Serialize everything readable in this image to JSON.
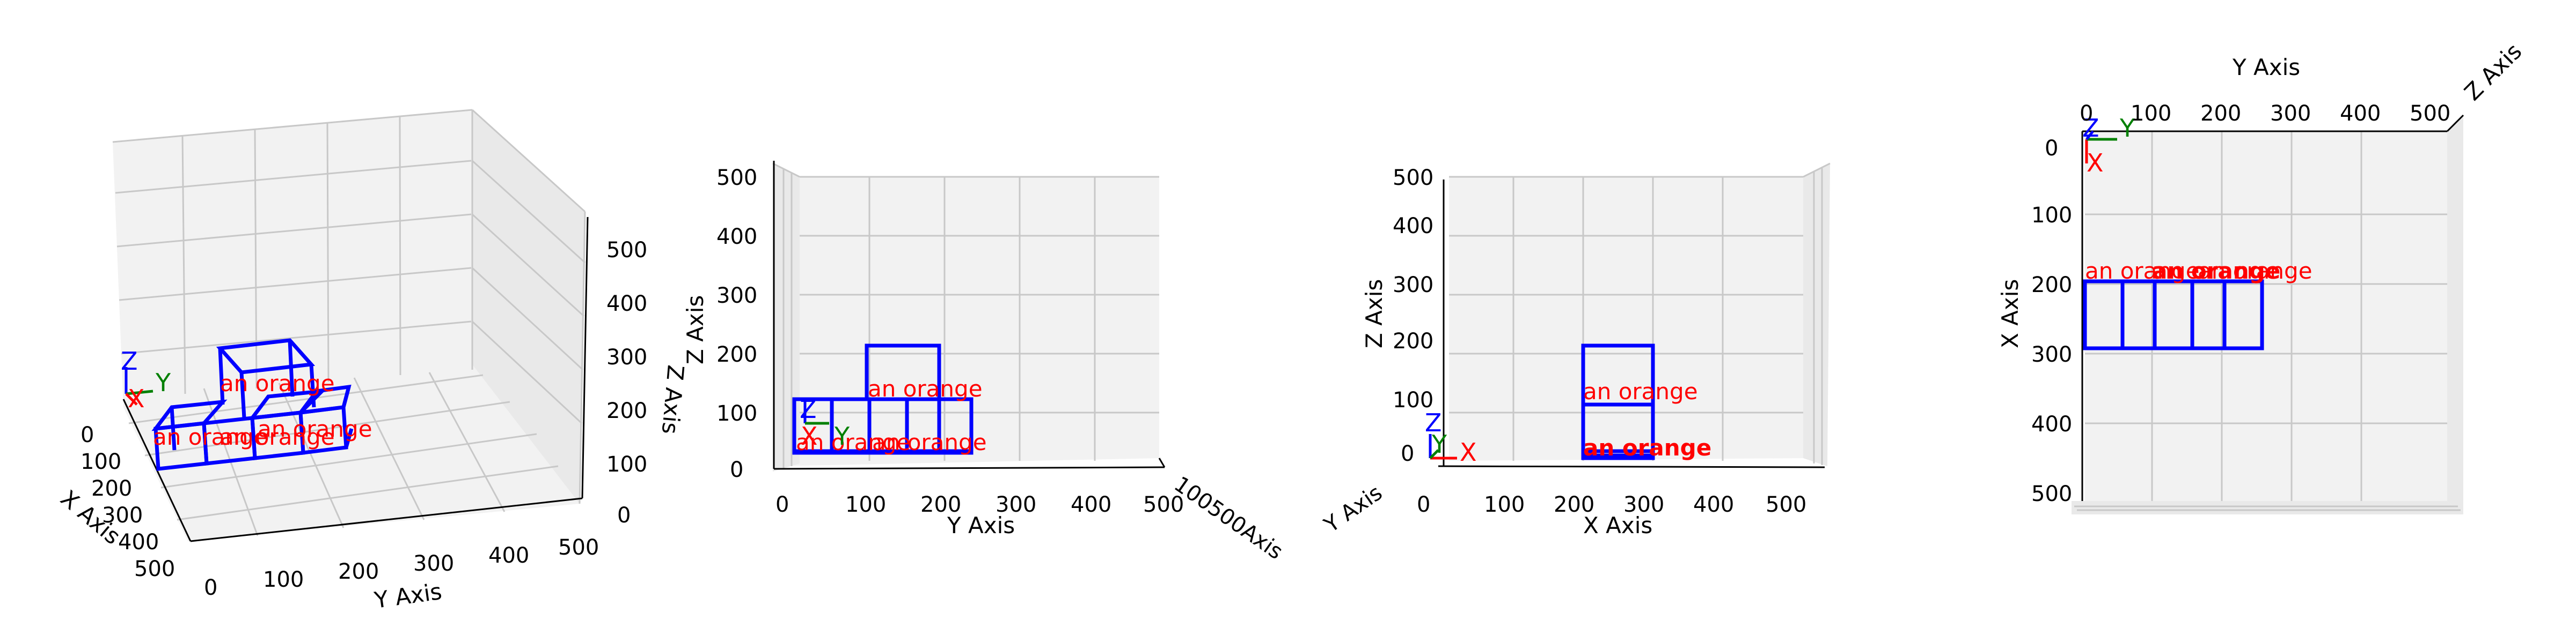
{
  "chart_data": [
    {
      "type": "3d-wireframe",
      "view": "perspective",
      "xlabel": "X Axis",
      "ylabel": "Y Axis",
      "zlabel": "Z Axis",
      "xticks": [
        "0",
        "100",
        "200",
        "300",
        "400",
        "500"
      ],
      "yticks": [
        "0",
        "100",
        "200",
        "300",
        "400",
        "500"
      ],
      "zticks": [
        "0",
        "100",
        "200",
        "300",
        "400",
        "500"
      ],
      "labels": [
        "an orange",
        "an orange",
        "an orange",
        "an orange"
      ],
      "gizmo": [
        "X",
        "Y",
        "Z"
      ]
    },
    {
      "type": "3d-wireframe",
      "view": "front (Y-Z)",
      "ylabel": "Y Axis",
      "zlabel": "Z Axis",
      "yticks": [
        "0",
        "100",
        "200",
        "300",
        "400",
        "500"
      ],
      "zticks": [
        "0",
        "100",
        "200",
        "300",
        "400",
        "500"
      ],
      "depth_tick_text": "100500Axis",
      "labels": [
        "an orange",
        "an orange",
        "an orange"
      ],
      "gizmo": [
        "X",
        "Y",
        "Z"
      ]
    },
    {
      "type": "3d-wireframe",
      "view": "side (X-Z)",
      "xlabel": "X Axis",
      "zlabel": "Z Axis",
      "xticks": [
        "0",
        "100",
        "200",
        "300",
        "400",
        "500"
      ],
      "zticks": [
        "0",
        "100",
        "200",
        "300",
        "400",
        "500"
      ],
      "depth_tick_text": "Y Axis",
      "labels": [
        "an orange",
        "an orange"
      ],
      "gizmo": [
        "X",
        "Y",
        "Z"
      ]
    },
    {
      "type": "3d-wireframe",
      "view": "top (X-Y)",
      "xlabel": "X Axis",
      "ylabel": "Y Axis",
      "zlabel": "Z Axis",
      "xticks": [
        "0",
        "100",
        "200",
        "300",
        "400",
        "500"
      ],
      "yticks": [
        "0",
        "100",
        "200",
        "300",
        "400",
        "500"
      ],
      "labels": [
        "an orange",
        "an orange",
        "an orange"
      ],
      "gizmo": [
        "X",
        "Y",
        "Z"
      ]
    }
  ]
}
